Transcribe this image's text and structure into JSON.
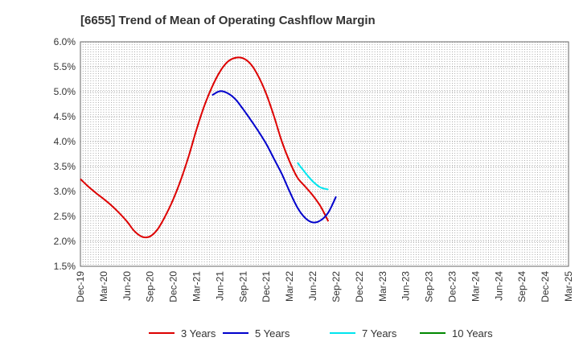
{
  "chart_data": {
    "type": "line",
    "title": "[6655]  Trend of Mean of Operating Cashflow Margin",
    "xlabel": "",
    "ylabel": "",
    "ylim": [
      1.5,
      6.0
    ],
    "y_ticks": [
      "6.0%",
      "5.5%",
      "5.0%",
      "4.5%",
      "4.0%",
      "3.5%",
      "3.0%",
      "2.5%",
      "2.0%",
      "1.5%"
    ],
    "y_tick_values": [
      6.0,
      5.5,
      5.0,
      4.5,
      4.0,
      3.5,
      3.0,
      2.5,
      2.0,
      1.5
    ],
    "x_ticks": [
      "Dec-19",
      "Mar-20",
      "Jun-20",
      "Sep-20",
      "Dec-20",
      "Mar-21",
      "Jun-21",
      "Sep-21",
      "Dec-21",
      "Mar-22",
      "Jun-22",
      "Sep-22",
      "Dec-22",
      "Mar-23",
      "Jun-23",
      "Sep-23",
      "Dec-23",
      "Mar-24",
      "Jun-24",
      "Sep-24",
      "Dec-24",
      "Mar-25"
    ],
    "grid": true,
    "legend_position": "bottom",
    "series": [
      {
        "name": "3 Years",
        "color": "#dd0000",
        "points": [
          [
            0,
            3.25
          ],
          [
            1,
            3.1
          ],
          [
            2,
            2.97
          ],
          [
            3,
            2.85
          ],
          [
            4,
            2.72
          ],
          [
            5,
            2.57
          ],
          [
            6,
            2.4
          ],
          [
            7,
            2.2
          ],
          [
            8,
            2.09
          ],
          [
            9,
            2.1
          ],
          [
            10,
            2.25
          ],
          [
            11,
            2.52
          ],
          [
            12,
            2.85
          ],
          [
            13,
            3.25
          ],
          [
            14,
            3.72
          ],
          [
            15,
            4.25
          ],
          [
            16,
            4.72
          ],
          [
            17,
            5.1
          ],
          [
            18,
            5.4
          ],
          [
            19,
            5.6
          ],
          [
            20,
            5.68
          ],
          [
            21,
            5.67
          ],
          [
            22,
            5.55
          ],
          [
            23,
            5.3
          ],
          [
            24,
            4.95
          ],
          [
            25,
            4.5
          ],
          [
            26,
            4.0
          ],
          [
            27,
            3.6
          ],
          [
            28,
            3.28
          ],
          [
            29,
            3.1
          ],
          [
            30,
            2.92
          ],
          [
            31,
            2.7
          ],
          [
            32,
            2.4
          ]
        ]
      },
      {
        "name": "5 Years",
        "color": "#0000cc",
        "points": [
          [
            17,
            4.93
          ],
          [
            18,
            5.01
          ],
          [
            19,
            4.97
          ],
          [
            20,
            4.85
          ],
          [
            21,
            4.65
          ],
          [
            22,
            4.43
          ],
          [
            23,
            4.2
          ],
          [
            24,
            3.95
          ],
          [
            25,
            3.65
          ],
          [
            26,
            3.35
          ],
          [
            27,
            3.0
          ],
          [
            28,
            2.68
          ],
          [
            29,
            2.47
          ],
          [
            30,
            2.38
          ],
          [
            31,
            2.42
          ],
          [
            32,
            2.58
          ],
          [
            33,
            2.9
          ]
        ]
      },
      {
        "name": "7 Years",
        "color": "#00e5ee",
        "points": [
          [
            28,
            3.58
          ],
          [
            29,
            3.38
          ],
          [
            30,
            3.2
          ],
          [
            31,
            3.08
          ],
          [
            32,
            3.04
          ]
        ]
      },
      {
        "name": "10 Years",
        "color": "#008800",
        "points": []
      }
    ]
  }
}
